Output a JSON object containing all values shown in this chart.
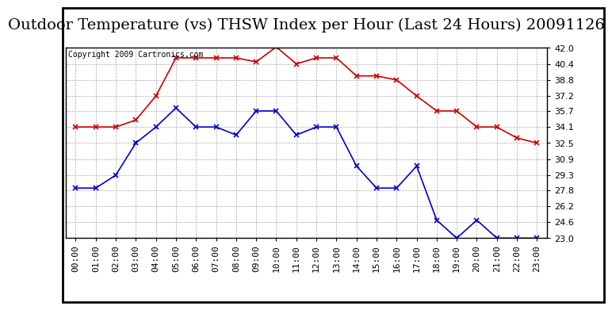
{
  "title": "Outdoor Temperature (vs) THSW Index per Hour (Last 24 Hours) 20091126",
  "copyright": "Copyright 2009 Cartronics.com",
  "hours": [
    "00:00",
    "01:00",
    "02:00",
    "03:00",
    "04:00",
    "05:00",
    "06:00",
    "07:00",
    "08:00",
    "09:00",
    "10:00",
    "11:00",
    "12:00",
    "13:00",
    "14:00",
    "15:00",
    "16:00",
    "17:00",
    "18:00",
    "19:00",
    "20:00",
    "21:00",
    "22:00",
    "23:00"
  ],
  "thsw": [
    34.1,
    34.1,
    34.1,
    34.8,
    37.2,
    41.0,
    41.0,
    41.0,
    41.0,
    40.6,
    42.1,
    40.4,
    41.0,
    41.0,
    39.2,
    39.2,
    38.8,
    37.2,
    35.7,
    35.7,
    34.1,
    34.1,
    33.0,
    32.5
  ],
  "temp": [
    28.0,
    28.0,
    29.3,
    32.5,
    34.1,
    36.0,
    34.1,
    34.1,
    33.3,
    35.7,
    35.7,
    33.3,
    34.1,
    34.1,
    30.2,
    28.0,
    28.0,
    30.2,
    24.8,
    23.0,
    24.8,
    23.0,
    23.0,
    23.0
  ],
  "thsw_color": "#cc0000",
  "temp_color": "#0000cc",
  "bg_color": "#ffffff",
  "grid_color": "#aaaaaa",
  "ylim_min": 23.0,
  "ylim_max": 42.0,
  "yticks": [
    23.0,
    24.6,
    26.2,
    27.8,
    29.3,
    30.9,
    32.5,
    34.1,
    35.7,
    37.2,
    38.8,
    40.4,
    42.0
  ],
  "title_fontsize": 14,
  "copyright_fontsize": 7,
  "tick_fontsize": 8,
  "marker": "x",
  "marker_size": 4,
  "linewidth": 1.2
}
